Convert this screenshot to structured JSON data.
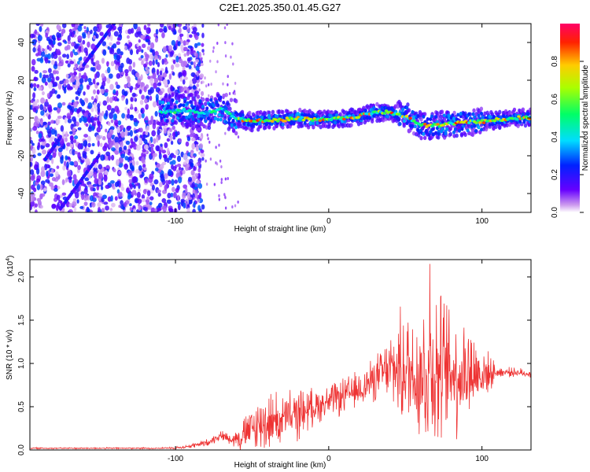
{
  "figure_title": "C2E1.2025.350.01.45.G27",
  "chart_data": [
    {
      "type": "heatmap",
      "name": "spectrogram",
      "xlabel": "Height of straight line (km)",
      "ylabel": "Frequency (Hz)",
      "xlim": [
        -195,
        132
      ],
      "ylim": [
        -50,
        50
      ],
      "xticks": [
        -100,
        0,
        100
      ],
      "yticks": [
        -40,
        -20,
        0,
        20,
        40
      ],
      "colorbar": {
        "label": "Normalized spectral amplitude",
        "range": [
          0,
          1
        ],
        "ticks": [
          "0.0",
          "0.2",
          "0.4",
          "0.6",
          "0.8"
        ],
        "tick_values": [
          0,
          0.2,
          0.4,
          0.6,
          0.8
        ]
      },
      "noise_region": {
        "x_from": -195,
        "x_to": -88,
        "y_from": -50,
        "y_to": 50
      },
      "dominant_ridge": [
        {
          "x": -110,
          "y": 3
        },
        {
          "x": -95,
          "y": 4
        },
        {
          "x": -80,
          "y": 3
        },
        {
          "x": -70,
          "y": 5
        },
        {
          "x": -60,
          "y": 0
        },
        {
          "x": -50,
          "y": -2
        },
        {
          "x": -40,
          "y": -1
        },
        {
          "x": -30,
          "y": -1
        },
        {
          "x": -20,
          "y": 0
        },
        {
          "x": -10,
          "y": -1
        },
        {
          "x": 0,
          "y": -1
        },
        {
          "x": 10,
          "y": 0
        },
        {
          "x": 20,
          "y": 1
        },
        {
          "x": 30,
          "y": 3
        },
        {
          "x": 40,
          "y": 3
        },
        {
          "x": 50,
          "y": 1
        },
        {
          "x": 60,
          "y": -4
        },
        {
          "x": 70,
          "y": -4
        },
        {
          "x": 80,
          "y": -3
        },
        {
          "x": 90,
          "y": -2
        },
        {
          "x": 100,
          "y": -2
        },
        {
          "x": 110,
          "y": -1
        },
        {
          "x": 120,
          "y": 0
        },
        {
          "x": 132,
          "y": 0
        }
      ]
    },
    {
      "type": "line",
      "name": "snr",
      "xlabel": "Height of straight line (km)",
      "ylabel": "SNR (10 * v/v)",
      "y_multiplier": "(x10",
      "y_multiplier_exp": "4",
      "y_multiplier_close": ")",
      "xlim": [
        -195,
        132
      ],
      "ylim": [
        0,
        2.2
      ],
      "xticks": [
        -100,
        0,
        100
      ],
      "yticks": [
        0.0,
        0.5,
        1.0,
        1.5,
        2.0
      ],
      "ytick_labels": [
        "0.0",
        "0.5",
        "1.0",
        "1.5",
        "2.0"
      ],
      "color": "#ee3333",
      "series": [
        {
          "name": "SNR",
          "x": [
            -195,
            -150,
            -110,
            -95,
            -80,
            -70,
            -62,
            -55,
            -48,
            -40,
            -30,
            -20,
            -10,
            0,
            10,
            20,
            30,
            38,
            45,
            52,
            58,
            63,
            66,
            70,
            78,
            85,
            92,
            100,
            110,
            120,
            132
          ],
          "base": [
            0.02,
            0.02,
            0.02,
            0.03,
            0.08,
            0.17,
            0.12,
            0.18,
            0.26,
            0.33,
            0.35,
            0.42,
            0.5,
            0.56,
            0.62,
            0.7,
            0.82,
            0.92,
            0.95,
            0.92,
            0.9,
            0.88,
            0.9,
            0.92,
            0.92,
            0.9,
            0.9,
            0.88,
            0.9,
            0.9,
            0.88
          ],
          "spread": [
            0.01,
            0.01,
            0.01,
            0.02,
            0.05,
            0.06,
            0.1,
            0.25,
            0.35,
            0.4,
            0.35,
            0.35,
            0.25,
            0.22,
            0.25,
            0.25,
            0.3,
            0.4,
            0.7,
            0.85,
            0.95,
            1.05,
            1.15,
            1.1,
            0.9,
            0.85,
            0.7,
            0.4,
            0.08,
            0.06,
            0.06
          ]
        }
      ],
      "peak": {
        "x": 66,
        "y": 2.15
      }
    }
  ]
}
